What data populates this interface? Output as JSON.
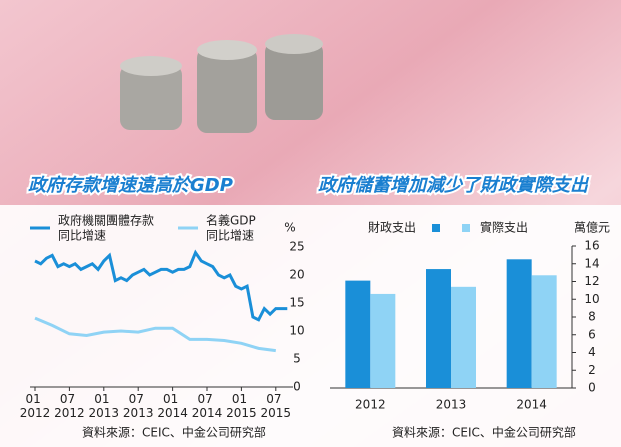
{
  "chart_data": [
    {
      "type": "line",
      "title": "政府存款增速遠高於GDP",
      "y_unit": "%",
      "source": "資料來源：CEIC、中金公司研究部",
      "xlim": [
        2012,
        2015.75
      ],
      "ylim": [
        0,
        25
      ],
      "yticks": [
        0,
        5,
        10,
        15,
        20,
        25
      ],
      "xticks": [
        {
          "value": 2012,
          "label": "01 2012"
        },
        {
          "value": 2012.5,
          "label": "07 2012"
        },
        {
          "value": 2013,
          "label": "01 2013"
        },
        {
          "value": 2013.5,
          "label": "07 2013"
        },
        {
          "value": 2014,
          "label": "01 2014"
        },
        {
          "value": 2014.5,
          "label": "07 2014"
        },
        {
          "value": 2015,
          "label": "01 2015"
        },
        {
          "value": 2015.5,
          "label": "07 2015"
        }
      ],
      "series": [
        {
          "name": "政府機關團體存款 同比增速",
          "color": "#1a8fd8",
          "x": [
            2012,
            2012.083,
            2012.167,
            2012.25,
            2012.333,
            2012.417,
            2012.5,
            2012.583,
            2012.667,
            2012.75,
            2012.833,
            2012.917,
            2013,
            2013.083,
            2013.167,
            2013.25,
            2013.333,
            2013.417,
            2013.5,
            2013.583,
            2013.667,
            2013.75,
            2013.833,
            2013.917,
            2014,
            2014.083,
            2014.167,
            2014.25,
            2014.333,
            2014.417,
            2014.5,
            2014.583,
            2014.667,
            2014.75,
            2014.833,
            2014.917,
            2015,
            2015.083,
            2015.167,
            2015.25,
            2015.333,
            2015.417,
            2015.5,
            2015.583,
            2015.667
          ],
          "values": [
            22.5,
            22,
            23,
            23.5,
            21.5,
            22,
            21.5,
            22,
            21,
            21.5,
            22,
            21,
            22.5,
            23.5,
            19,
            19.5,
            19,
            20,
            20.5,
            21,
            20,
            20.5,
            21,
            21,
            20.5,
            21,
            21,
            21.5,
            24,
            22.5,
            22,
            21.5,
            20,
            19.5,
            20,
            18,
            17.5,
            18,
            12.5,
            12,
            14,
            13,
            14,
            14,
            14
          ]
        },
        {
          "name": "名義GDP 同比增速",
          "color": "#8fd3f5",
          "x": [
            2012,
            2012.25,
            2012.5,
            2012.75,
            2013,
            2013.25,
            2013.5,
            2013.75,
            2014,
            2014.25,
            2014.5,
            2014.75,
            2015,
            2015.25,
            2015.5
          ],
          "values": [
            12.3,
            11,
            9.5,
            9.2,
            9.8,
            10,
            9.8,
            10.5,
            10.5,
            8.5,
            8.5,
            8.3,
            7.8,
            6.9,
            6.5
          ]
        }
      ]
    },
    {
      "type": "bar",
      "title": "政府儲蓄增加減少了財政實際支出",
      "y_unit": "萬億元",
      "source": "資料來源：CEIC、中金公司研究部",
      "categories": [
        "2012",
        "2013",
        "2014"
      ],
      "ylim": [
        0,
        16
      ],
      "yticks": [
        0,
        2,
        4,
        6,
        8,
        10,
        12,
        14,
        16
      ],
      "series": [
        {
          "name": "財政支出",
          "color": "#1a8fd8",
          "values": [
            12.1,
            13.4,
            14.5
          ]
        },
        {
          "name": "實際支出",
          "color": "#8fd3f5",
          "values": [
            10.6,
            11.4,
            12.7
          ]
        }
      ]
    }
  ]
}
